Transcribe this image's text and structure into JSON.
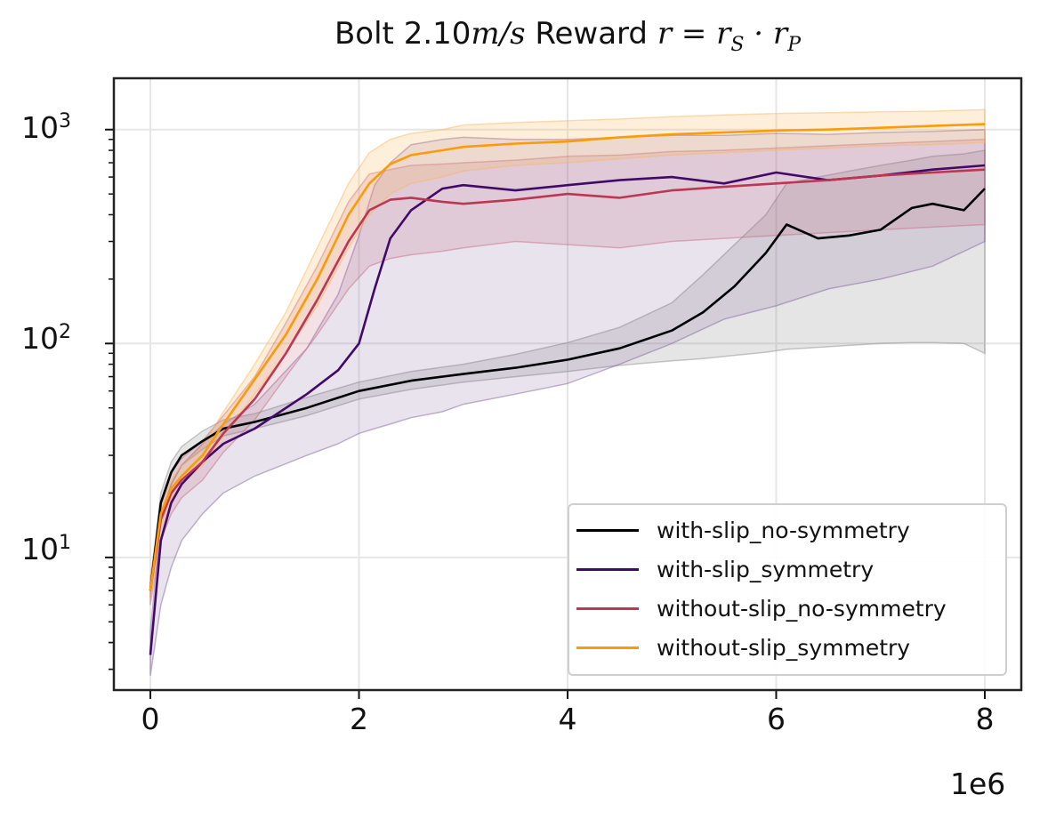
{
  "chart_data": {
    "type": "line",
    "title_parts": {
      "prefix": "Bolt 2.10",
      "speed_unit": "m/s",
      "mid": " Reward ",
      "formula_a": "r = r",
      "sub_s": "S",
      "dot": " · r",
      "sub_p": "P"
    },
    "x_offset_label": "1e6",
    "xlim": [
      -0.35,
      8.35
    ],
    "ylim_log10": [
      0.38,
      3.24
    ],
    "yscale": "log",
    "grid": true,
    "legend_position": "lower-right",
    "x_ticks": [
      {
        "value": 0,
        "label": "0"
      },
      {
        "value": 2,
        "label": "2"
      },
      {
        "value": 4,
        "label": "4"
      },
      {
        "value": 6,
        "label": "6"
      },
      {
        "value": 8,
        "label": "8"
      }
    ],
    "y_ticks": [
      {
        "value": 10,
        "base": "10",
        "exp": "1"
      },
      {
        "value": 100,
        "base": "10",
        "exp": "2"
      },
      {
        "value": 1000,
        "base": "10",
        "exp": "3"
      }
    ],
    "series": [
      {
        "name": "with-slip_no-symmetry",
        "color": "#000004",
        "fill_color": "#888888",
        "fill_opacity": 0.22,
        "x": [
          0,
          0.1,
          0.2,
          0.3,
          0.5,
          0.7,
          1.0,
          1.5,
          2.0,
          2.5,
          3.0,
          3.5,
          4.0,
          4.5,
          5.0,
          5.3,
          5.6,
          5.9,
          6.1,
          6.4,
          6.7,
          7.0,
          7.3,
          7.5,
          7.8,
          8.0
        ],
        "mean": [
          7,
          18,
          25,
          30,
          35,
          40,
          43,
          50,
          60,
          67,
          72,
          77,
          84,
          95,
          115,
          140,
          185,
          265,
          360,
          310,
          320,
          340,
          430,
          450,
          420,
          530
        ],
        "low": [
          6.5,
          16,
          22,
          27,
          32,
          37,
          40,
          46,
          55,
          61,
          66,
          70,
          74,
          79,
          83,
          85,
          88,
          91,
          94,
          96,
          98,
          100,
          101,
          101,
          100,
          90
        ],
        "high": [
          7.5,
          20,
          28,
          33,
          39,
          44,
          47,
          56,
          66,
          74,
          80,
          89,
          101,
          119,
          155,
          210,
          290,
          400,
          560,
          600,
          640,
          680,
          720,
          750,
          770,
          800
        ]
      },
      {
        "name": "with-slip_symmetry",
        "color": "#420a68",
        "fill_color": "#7a5a9a",
        "fill_opacity": 0.17,
        "x": [
          0,
          0.1,
          0.2,
          0.3,
          0.5,
          0.7,
          1.0,
          1.5,
          1.8,
          2.0,
          2.15,
          2.3,
          2.5,
          2.8,
          3.0,
          3.5,
          4.0,
          4.5,
          5.0,
          5.5,
          6.0,
          6.5,
          7.0,
          7.5,
          8.0
        ],
        "mean": [
          3.5,
          12,
          18,
          22,
          28,
          34,
          40,
          58,
          75,
          100,
          180,
          310,
          420,
          530,
          550,
          520,
          550,
          580,
          600,
          560,
          630,
          580,
          610,
          650,
          680
        ],
        "low": [
          2.8,
          6,
          9,
          12,
          16,
          20,
          24,
          30,
          34,
          38,
          40,
          42,
          45,
          48,
          52,
          58,
          65,
          80,
          100,
          130,
          150,
          180,
          200,
          230,
          300
        ],
        "high": [
          4.5,
          15,
          22,
          27,
          34,
          42,
          52,
          95,
          170,
          320,
          550,
          700,
          850,
          900,
          920,
          900,
          900,
          920,
          940,
          940,
          960,
          950,
          970,
          980,
          1000
        ]
      },
      {
        "name": "without-slip_no-symmetry",
        "color": "#bc3754",
        "fill_color": "#c4687c",
        "fill_opacity": 0.2,
        "x": [
          0,
          0.1,
          0.2,
          0.3,
          0.5,
          0.7,
          1.0,
          1.3,
          1.6,
          1.9,
          2.1,
          2.3,
          2.5,
          2.8,
          3.0,
          3.5,
          4.0,
          4.5,
          5.0,
          5.5,
          6.0,
          6.5,
          7.0,
          7.5,
          8.0
        ],
        "mean": [
          7,
          15,
          20,
          23,
          28,
          38,
          55,
          90,
          160,
          300,
          420,
          470,
          480,
          460,
          450,
          470,
          500,
          480,
          520,
          540,
          560,
          580,
          610,
          630,
          650
        ],
        "low": [
          6,
          12,
          16,
          19,
          23,
          31,
          44,
          70,
          110,
          180,
          230,
          250,
          260,
          270,
          280,
          300,
          290,
          280,
          300,
          310,
          320,
          330,
          340,
          350,
          360
        ],
        "high": [
          8,
          18,
          25,
          29,
          35,
          46,
          70,
          125,
          230,
          460,
          620,
          650,
          680,
          690,
          700,
          720,
          750,
          760,
          790,
          800,
          820,
          840,
          860,
          880,
          900
        ]
      },
      {
        "name": "without-slip_symmetry",
        "color": "#fb9b06",
        "fill_color": "#fbb45a",
        "fill_opacity": 0.22,
        "x": [
          0,
          0.1,
          0.2,
          0.3,
          0.5,
          0.7,
          1.0,
          1.3,
          1.6,
          1.9,
          2.1,
          2.3,
          2.5,
          2.8,
          3.0,
          3.5,
          4.0,
          4.5,
          5.0,
          5.5,
          6.0,
          6.5,
          7.0,
          7.5,
          8.0
        ],
        "mean": [
          7,
          16,
          21,
          24,
          30,
          42,
          68,
          110,
          200,
          400,
          560,
          690,
          760,
          800,
          830,
          860,
          880,
          920,
          950,
          970,
          990,
          1000,
          1020,
          1040,
          1060
        ],
        "low": [
          6.5,
          14,
          19,
          22,
          27,
          37,
          58,
          90,
          150,
          280,
          400,
          500,
          560,
          600,
          640,
          680,
          700,
          730,
          760,
          780,
          800,
          820,
          840,
          850,
          870
        ],
        "high": [
          7.5,
          18,
          23,
          27,
          33,
          48,
          80,
          140,
          280,
          560,
          780,
          900,
          960,
          1000,
          1050,
          1080,
          1100,
          1120,
          1150,
          1170,
          1190,
          1200,
          1210,
          1220,
          1240
        ]
      }
    ]
  }
}
